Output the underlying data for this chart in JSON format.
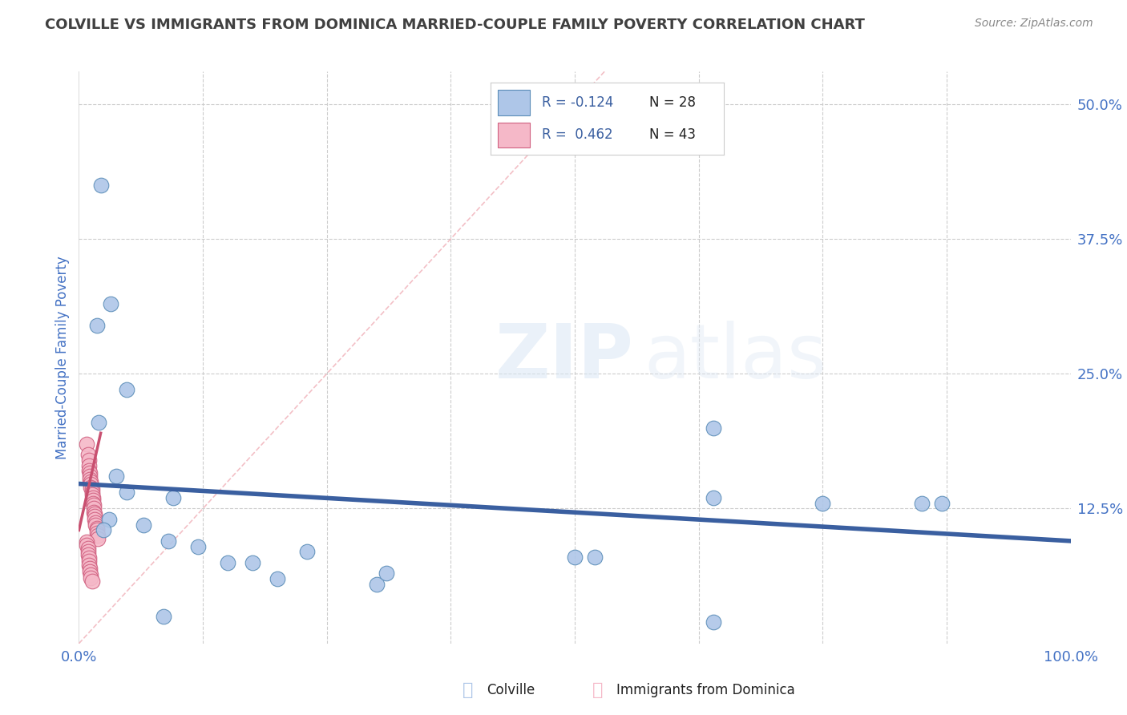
{
  "title": "COLVILLE VS IMMIGRANTS FROM DOMINICA MARRIED-COUPLE FAMILY POVERTY CORRELATION CHART",
  "source": "Source: ZipAtlas.com",
  "ylabel": "Married-Couple Family Poverty",
  "xlim": [
    0.0,
    1.0
  ],
  "ylim": [
    0.0,
    0.53
  ],
  "xticks": [
    0.0,
    0.125,
    0.25,
    0.375,
    0.5,
    0.625,
    0.75,
    0.875,
    1.0
  ],
  "yticks": [
    0.0,
    0.125,
    0.25,
    0.375,
    0.5
  ],
  "legend_r_blue": "-0.124",
  "legend_n_blue": "28",
  "legend_r_pink": "0.462",
  "legend_n_pink": "43",
  "blue_scatter": [
    [
      0.022,
      0.425
    ],
    [
      0.032,
      0.315
    ],
    [
      0.018,
      0.295
    ],
    [
      0.048,
      0.235
    ],
    [
      0.02,
      0.205
    ],
    [
      0.038,
      0.155
    ],
    [
      0.048,
      0.14
    ],
    [
      0.095,
      0.135
    ],
    [
      0.03,
      0.115
    ],
    [
      0.065,
      0.11
    ],
    [
      0.09,
      0.095
    ],
    [
      0.12,
      0.09
    ],
    [
      0.15,
      0.075
    ],
    [
      0.175,
      0.075
    ],
    [
      0.2,
      0.06
    ],
    [
      0.23,
      0.085
    ],
    [
      0.3,
      0.055
    ],
    [
      0.31,
      0.065
    ],
    [
      0.5,
      0.08
    ],
    [
      0.52,
      0.08
    ],
    [
      0.64,
      0.2
    ],
    [
      0.64,
      0.135
    ],
    [
      0.75,
      0.13
    ],
    [
      0.85,
      0.13
    ],
    [
      0.87,
      0.13
    ],
    [
      0.64,
      0.02
    ],
    [
      0.025,
      0.105
    ],
    [
      0.085,
      0.025
    ]
  ],
  "pink_scatter": [
    [
      0.008,
      0.185
    ],
    [
      0.009,
      0.175
    ],
    [
      0.01,
      0.17
    ],
    [
      0.01,
      0.165
    ],
    [
      0.01,
      0.16
    ],
    [
      0.011,
      0.158
    ],
    [
      0.011,
      0.155
    ],
    [
      0.011,
      0.152
    ],
    [
      0.012,
      0.15
    ],
    [
      0.012,
      0.148
    ],
    [
      0.012,
      0.145
    ],
    [
      0.013,
      0.143
    ],
    [
      0.013,
      0.14
    ],
    [
      0.013,
      0.138
    ],
    [
      0.014,
      0.135
    ],
    [
      0.014,
      0.133
    ],
    [
      0.014,
      0.13
    ],
    [
      0.015,
      0.128
    ],
    [
      0.015,
      0.125
    ],
    [
      0.015,
      0.122
    ],
    [
      0.016,
      0.12
    ],
    [
      0.016,
      0.118
    ],
    [
      0.016,
      0.115
    ],
    [
      0.017,
      0.112
    ],
    [
      0.017,
      0.11
    ],
    [
      0.018,
      0.107
    ],
    [
      0.018,
      0.105
    ],
    [
      0.018,
      0.102
    ],
    [
      0.019,
      0.1
    ],
    [
      0.019,
      0.097
    ],
    [
      0.008,
      0.094
    ],
    [
      0.008,
      0.091
    ],
    [
      0.009,
      0.088
    ],
    [
      0.009,
      0.085
    ],
    [
      0.009,
      0.082
    ],
    [
      0.01,
      0.079
    ],
    [
      0.01,
      0.076
    ],
    [
      0.01,
      0.073
    ],
    [
      0.011,
      0.07
    ],
    [
      0.011,
      0.067
    ],
    [
      0.012,
      0.064
    ],
    [
      0.012,
      0.061
    ],
    [
      0.013,
      0.058
    ]
  ],
  "blue_line": [
    [
      0.0,
      0.148
    ],
    [
      1.0,
      0.095
    ]
  ],
  "pink_line": [
    [
      0.0,
      0.105
    ],
    [
      0.022,
      0.195
    ]
  ],
  "diag_line": [
    [
      0.0,
      0.0
    ],
    [
      0.53,
      0.53
    ]
  ],
  "bg_color": "#ffffff",
  "grid_color": "#cccccc",
  "blue_color": "#aec6e8",
  "pink_color": "#f5b8c8",
  "blue_edge_color": "#5b8db8",
  "pink_edge_color": "#d06080",
  "blue_line_color": "#3a5fa0",
  "pink_line_color": "#c85070",
  "diag_line_color": "#f0b0b8",
  "title_color": "#404040",
  "source_color": "#888888",
  "axis_color": "#4472c4",
  "tick_color": "#4472c4"
}
